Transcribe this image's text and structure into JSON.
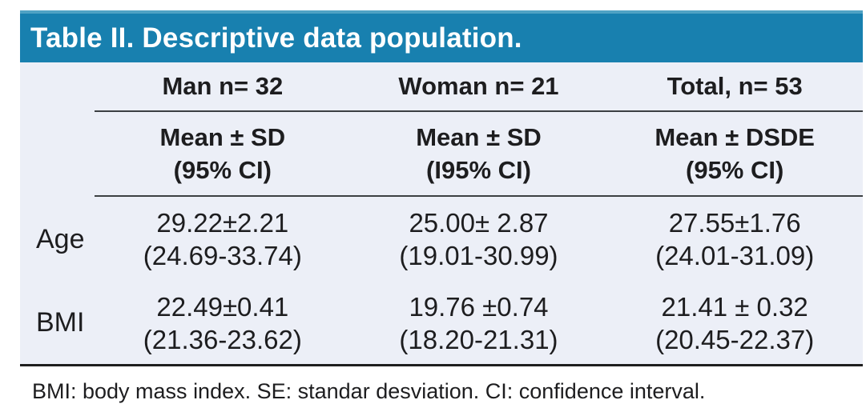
{
  "title": "Table II. Descriptive data population.",
  "colors": {
    "header_bg": "#1880AF",
    "header_bg_top": "#4FA2C4",
    "body_bg": "#ECEFF7",
    "rule": "#3C4043",
    "rule_heavy": "#1F1F1F",
    "title_text": "#FFFFFF",
    "text": "#1D1D1F"
  },
  "columns": [
    "Man n= 32",
    "Woman n= 21",
    "Total, n= 53"
  ],
  "subheaders": [
    {
      "line1": "Mean ± SD",
      "line2": "(95% CI)"
    },
    {
      "line1": "Mean ± SD",
      "line2": "(I95% CI)"
    },
    {
      "line1": "Mean ± DSDE",
      "line2": "(95% CI)"
    }
  ],
  "rows": [
    {
      "label": "Age",
      "cells": [
        {
          "mean": "29.22±2.21",
          "ci": "(24.69-33.74)"
        },
        {
          "mean": "25.00± 2.87",
          "ci": "(19.01-30.99)"
        },
        {
          "mean": "27.55±1.76",
          "ci": "(24.01-31.09)"
        }
      ]
    },
    {
      "label": "BMI",
      "cells": [
        {
          "mean": "22.49±0.41",
          "ci": "(21.36-23.62)"
        },
        {
          "mean": "19.76 ±0.74",
          "ci": "(18.20-21.31)"
        },
        {
          "mean": "21.41 ± 0.32",
          "ci": "(20.45-22.37)"
        }
      ]
    }
  ],
  "footnote": "BMI: body mass index. SE: standar desviation. CI: confidence interval."
}
